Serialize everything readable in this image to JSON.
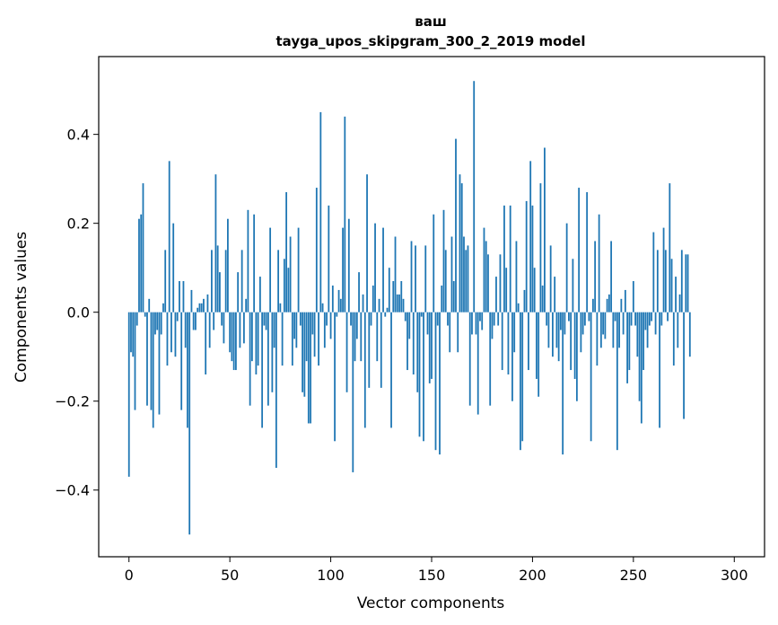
{
  "chart_data": {
    "type": "bar",
    "title_line1": "ваш",
    "title_line2": "tayga_upos_skipgram_300_2_2019 model",
    "xlabel": "Vector components",
    "ylabel": "Components values",
    "xlim": [
      -15,
      315
    ],
    "ylim": [
      -0.55,
      0.575
    ],
    "xticks": [
      0,
      50,
      100,
      150,
      200,
      250,
      300
    ],
    "xtick_labels": [
      "0",
      "50",
      "100",
      "150",
      "200",
      "250",
      "300"
    ],
    "yticks": [
      -0.4,
      -0.2,
      0.0,
      0.2,
      0.4
    ],
    "ytick_labels": [
      "−0.4",
      "−0.2",
      "0.0",
      "0.2",
      "0.4"
    ],
    "bar_color": "#1f77b4",
    "grid": false,
    "values": [
      -0.37,
      -0.09,
      -0.1,
      -0.22,
      -0.03,
      0.21,
      0.22,
      0.29,
      -0.01,
      -0.21,
      0.03,
      -0.22,
      -0.26,
      -0.05,
      -0.04,
      -0.23,
      -0.05,
      0.02,
      0.14,
      -0.12,
      0.34,
      -0.09,
      0.2,
      -0.1,
      -0.02,
      0.07,
      -0.22,
      0.07,
      -0.08,
      -0.26,
      -0.5,
      0.05,
      -0.04,
      -0.04,
      0.01,
      0.02,
      0.02,
      0.03,
      -0.14,
      0.04,
      -0.08,
      0.14,
      -0.04,
      0.31,
      0.15,
      0.09,
      -0.03,
      -0.07,
      0.14,
      0.21,
      -0.09,
      -0.11,
      -0.13,
      -0.13,
      0.09,
      -0.08,
      0.14,
      -0.07,
      0.03,
      0.23,
      -0.21,
      -0.11,
      0.22,
      -0.14,
      -0.12,
      0.08,
      -0.26,
      -0.03,
      -0.04,
      -0.21,
      0.19,
      -0.18,
      -0.08,
      -0.35,
      0.14,
      0.02,
      -0.12,
      0.12,
      0.27,
      0.1,
      0.17,
      -0.12,
      -0.06,
      -0.08,
      0.19,
      -0.03,
      -0.18,
      -0.19,
      -0.11,
      -0.25,
      -0.25,
      -0.05,
      -0.1,
      0.28,
      -0.12,
      0.45,
      0.02,
      -0.08,
      -0.03,
      0.24,
      -0.06,
      0.06,
      -0.29,
      -0.01,
      0.05,
      0.03,
      0.19,
      0.44,
      -0.18,
      0.21,
      -0.03,
      -0.36,
      -0.11,
      -0.06,
      0.09,
      -0.11,
      0.04,
      -0.26,
      0.31,
      -0.17,
      -0.03,
      0.06,
      0.2,
      -0.11,
      0.03,
      -0.17,
      0.19,
      -0.01,
      0.01,
      0.1,
      -0.26,
      0.07,
      0.17,
      0.04,
      0.04,
      0.07,
      0.03,
      -0.02,
      -0.13,
      -0.06,
      0.16,
      -0.14,
      0.15,
      -0.18,
      -0.28,
      -0.01,
      -0.29,
      0.15,
      -0.05,
      -0.16,
      -0.15,
      0.22,
      -0.31,
      -0.03,
      -0.32,
      0.06,
      0.23,
      0.14,
      -0.03,
      -0.09,
      0.17,
      0.07,
      0.39,
      -0.09,
      0.31,
      0.29,
      0.17,
      0.14,
      0.15,
      -0.21,
      -0.05,
      0.52,
      -0.05,
      -0.23,
      -0.02,
      -0.04,
      0.19,
      0.16,
      0.13,
      -0.21,
      -0.06,
      -0.03,
      0.08,
      -0.03,
      0.13,
      -0.13,
      0.24,
      0.1,
      -0.14,
      0.24,
      -0.2,
      -0.09,
      0.16,
      0.02,
      -0.31,
      -0.29,
      0.05,
      0.25,
      -0.13,
      0.34,
      0.24,
      0.1,
      -0.15,
      -0.19,
      0.29,
      0.06,
      0.37,
      -0.03,
      -0.08,
      0.15,
      -0.1,
      0.08,
      -0.08,
      -0.11,
      -0.04,
      -0.32,
      -0.05,
      0.2,
      -0.02,
      -0.13,
      0.12,
      -0.15,
      -0.2,
      0.28,
      -0.09,
      -0.05,
      -0.03,
      0.27,
      -0.02,
      -0.29,
      0.03,
      0.16,
      -0.12,
      0.22,
      -0.08,
      -0.05,
      -0.06,
      0.03,
      0.04,
      0.16,
      -0.08,
      -0.02,
      -0.31,
      -0.08,
      0.03,
      -0.05,
      0.05,
      -0.16,
      -0.13,
      -0.03,
      0.07,
      -0.03,
      -0.1,
      -0.2,
      -0.25,
      -0.13,
      -0.04,
      -0.08,
      -0.03,
      -0.02,
      0.18,
      -0.05,
      0.14,
      -0.26,
      -0.03,
      0.19,
      0.14,
      -0.02,
      0.29,
      0.12,
      -0.12,
      0.08,
      -0.08,
      0.04,
      0.14,
      -0.24,
      0.13,
      0.13,
      -0.1
    ]
  }
}
